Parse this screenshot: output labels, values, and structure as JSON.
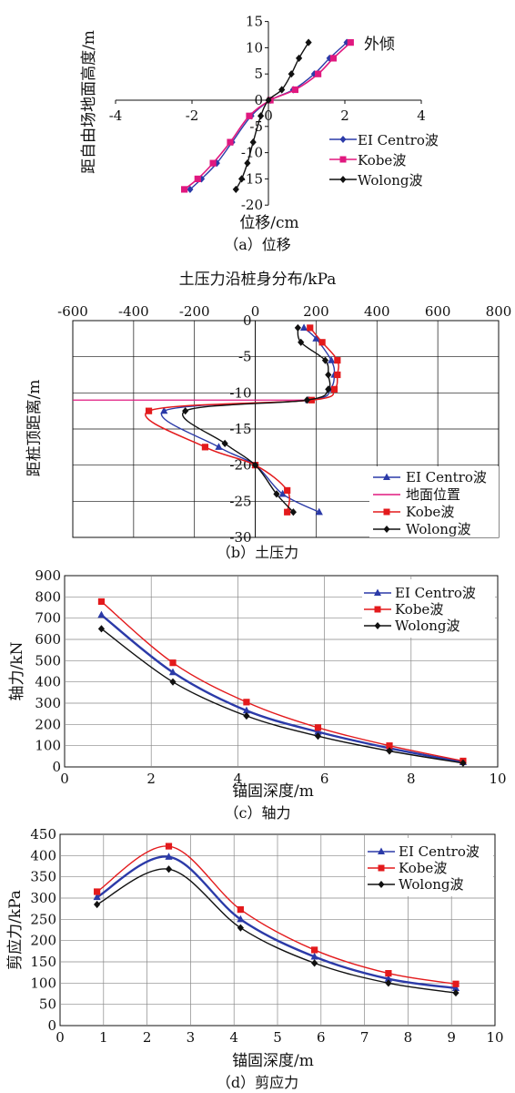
{
  "figure": {
    "captions": [
      "（a）位移",
      "（b）土压力",
      "（c）轴力",
      "（d）剪应力"
    ]
  },
  "chart_data": [
    {
      "id": "a",
      "type": "line",
      "caption": "（a）位移",
      "xlabel": "位移/cm",
      "ylabel": "距自由场地面高度/m",
      "xlim": [
        -4,
        4
      ],
      "ylim": [
        -20,
        15
      ],
      "xticks": [
        -4,
        -2,
        0,
        2,
        4
      ],
      "yticks": [
        15,
        10,
        5,
        0,
        -5,
        -10,
        -15,
        -20
      ],
      "grid": false,
      "annotation": "外倾",
      "legend_position": "right",
      "series": [
        {
          "name": "EI Centro波",
          "color": "#2b3aa8",
          "marker": "diamond",
          "x": [
            2.05,
            1.6,
            1.2,
            0.65,
            0.05,
            -0.45,
            -0.95,
            -1.35,
            -1.75,
            -2.05
          ],
          "y": [
            11,
            8,
            5,
            2,
            0,
            -3,
            -8,
            -12,
            -15,
            -17
          ]
        },
        {
          "name": "Kobe波",
          "color": "#e0187f",
          "marker": "square",
          "x": [
            2.15,
            1.7,
            1.3,
            0.7,
            0.05,
            -0.5,
            -1.0,
            -1.45,
            -1.85,
            -2.2
          ],
          "y": [
            11,
            8,
            5,
            2,
            0,
            -3,
            -8,
            -12,
            -15,
            -17
          ]
        },
        {
          "name": "Wolong波",
          "color": "#111111",
          "marker": "diamond",
          "x": [
            1.05,
            0.8,
            0.6,
            0.35,
            0.0,
            -0.2,
            -0.4,
            -0.55,
            -0.7,
            -0.85
          ],
          "y": [
            11,
            8,
            5,
            2,
            0,
            -3,
            -8,
            -12,
            -15,
            -17
          ]
        }
      ]
    },
    {
      "id": "b",
      "type": "line",
      "caption": "（b）土压力",
      "title": "土压力沿桩身分布/kPa",
      "ylabel": "距桩顶距离/m",
      "xlim": [
        -600,
        800
      ],
      "ylim": [
        -30,
        0
      ],
      "xticks": [
        -600,
        -400,
        -200,
        0,
        200,
        400,
        600,
        800
      ],
      "yticks": [
        0,
        -5,
        -10,
        -15,
        -20,
        -25,
        -30
      ],
      "grid": true,
      "legend_position": "bottom-right",
      "series": [
        {
          "name": "EI Centro波",
          "color": "#2b3aa8",
          "marker": "triangle",
          "x": [
            160,
            200,
            250,
            260,
            245,
            175,
            -300,
            -120,
            0,
            90,
            210
          ],
          "y": [
            -1,
            -2.5,
            -5.5,
            -7.5,
            -9.5,
            -11,
            -12.5,
            -17.5,
            -20,
            -24,
            -26.5
          ]
        },
        {
          "name": "地面位置",
          "color": "#e0187f",
          "marker": "none",
          "x": [
            -600,
            180
          ],
          "y": [
            -11,
            -11
          ]
        },
        {
          "name": "Kobe波",
          "color": "#e31a1c",
          "marker": "square",
          "x": [
            180,
            220,
            270,
            270,
            260,
            185,
            -350,
            -165,
            0,
            105,
            105
          ],
          "y": [
            -1,
            -3,
            -5.5,
            -7.5,
            -9.5,
            -11,
            -12.5,
            -17.5,
            -20,
            -23.5,
            -26.5
          ]
        },
        {
          "name": "Wolong波",
          "color": "#111111",
          "marker": "diamond",
          "x": [
            140,
            150,
            230,
            240,
            240,
            170,
            -230,
            -100,
            0,
            70,
            125
          ],
          "y": [
            -1,
            -3,
            -5.5,
            -7.5,
            -9.5,
            -11,
            -12.5,
            -17,
            -20,
            -24,
            -26.5
          ]
        }
      ]
    },
    {
      "id": "c",
      "type": "line",
      "caption": "（c）轴力",
      "xlabel": "锚固深度/m",
      "ylabel": "轴力/kN",
      "xlim": [
        0,
        10
      ],
      "ylim": [
        0,
        900
      ],
      "xticks": [
        0,
        2,
        4,
        6,
        8,
        10
      ],
      "yticks": [
        0,
        100,
        200,
        300,
        400,
        500,
        600,
        700,
        800,
        900
      ],
      "grid": true,
      "legend_position": "top-right",
      "series": [
        {
          "name": "EI Centro波",
          "color": "#2b3aa8",
          "marker": "triangle",
          "x": [
            0.85,
            2.5,
            4.2,
            5.85,
            7.5,
            9.2
          ],
          "y": [
            715,
            445,
            265,
            165,
            88,
            22
          ]
        },
        {
          "name": "Kobe波",
          "color": "#e31a1c",
          "marker": "square",
          "x": [
            0.85,
            2.5,
            4.2,
            5.85,
            7.5,
            9.2
          ],
          "y": [
            778,
            490,
            305,
            185,
            100,
            28
          ]
        },
        {
          "name": "Wolong波",
          "color": "#111111",
          "marker": "diamond",
          "x": [
            0.85,
            2.5,
            4.2,
            5.85,
            7.5,
            9.2
          ],
          "y": [
            650,
            400,
            240,
            145,
            75,
            18
          ]
        }
      ]
    },
    {
      "id": "d",
      "type": "line",
      "caption": "（d）剪应力",
      "xlabel": "锚固深度/m",
      "ylabel": "剪应力/kPa",
      "xlim": [
        0,
        10
      ],
      "ylim": [
        0,
        450
      ],
      "xticks": [
        0,
        1,
        2,
        3,
        4,
        5,
        6,
        7,
        8,
        9,
        10
      ],
      "yticks": [
        0,
        50,
        100,
        150,
        200,
        250,
        300,
        350,
        400,
        450
      ],
      "grid": true,
      "legend_position": "top-right",
      "series": [
        {
          "name": "EI Centro波",
          "color": "#2b3aa8",
          "marker": "triangle",
          "x": [
            0.85,
            2.5,
            4.15,
            5.85,
            7.55,
            9.1
          ],
          "y": [
            302,
            397,
            250,
            162,
            110,
            88
          ]
        },
        {
          "name": "Kobe波",
          "color": "#e31a1c",
          "marker": "square",
          "x": [
            0.85,
            2.5,
            4.15,
            5.85,
            7.55,
            9.1
          ],
          "y": [
            315,
            422,
            273,
            178,
            123,
            98
          ]
        },
        {
          "name": "Wolong波",
          "color": "#111111",
          "marker": "diamond",
          "x": [
            0.85,
            2.5,
            4.15,
            5.85,
            7.55,
            9.1
          ],
          "y": [
            285,
            368,
            230,
            147,
            100,
            77
          ]
        }
      ]
    }
  ]
}
